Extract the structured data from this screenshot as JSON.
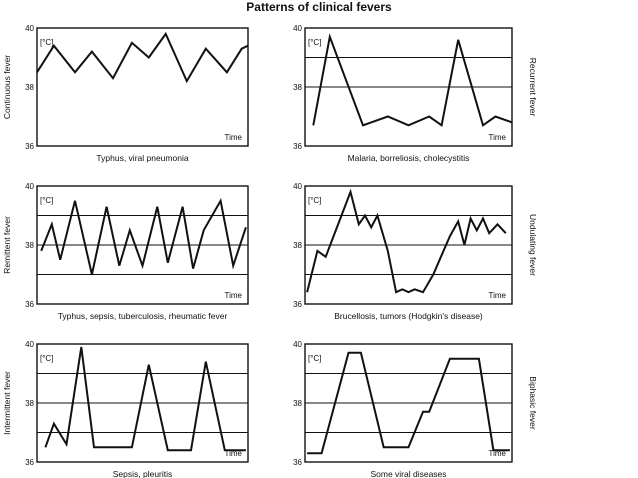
{
  "title": "Patterns of clinical fevers",
  "chart_data": [
    {
      "type": "line",
      "ylabel": "Continuous fever",
      "unit": "[°C]",
      "xlabel": "Time",
      "caption": "Typhus, viral pneumonia",
      "ylim": [
        36,
        40
      ],
      "yticks": [
        36,
        38,
        40
      ],
      "hlines": [],
      "grid": false,
      "label_side": "left",
      "x": [
        0,
        0.08,
        0.18,
        0.26,
        0.36,
        0.45,
        0.53,
        0.61,
        0.71,
        0.8,
        0.9,
        0.97,
        1
      ],
      "values": [
        38.5,
        39.4,
        38.5,
        39.2,
        38.3,
        39.5,
        39.0,
        39.8,
        38.2,
        39.3,
        38.5,
        39.3,
        39.4
      ]
    },
    {
      "type": "line",
      "ylabel": "Recurrent fever",
      "unit": "[°C]",
      "xlabel": "Time",
      "caption": "Malaria, borreliosis, cholecystitis",
      "ylim": [
        36,
        40
      ],
      "yticks": [
        36,
        38,
        40
      ],
      "hlines": [
        39,
        38
      ],
      "grid": false,
      "label_side": "right",
      "x": [
        0.04,
        0.12,
        0.28,
        0.4,
        0.5,
        0.6,
        0.66,
        0.74,
        0.86,
        0.92,
        1
      ],
      "values": [
        36.7,
        39.7,
        36.7,
        37.0,
        36.7,
        37.0,
        36.7,
        39.6,
        36.7,
        37.0,
        36.8
      ]
    },
    {
      "type": "line",
      "ylabel": "Remittent fever",
      "unit": "[°C]",
      "xlabel": "Time",
      "caption": "Typhus, sepsis, tuberculosis, rheumatic fever",
      "ylim": [
        36,
        40
      ],
      "yticks": [
        36,
        38,
        40
      ],
      "hlines": [
        39,
        38,
        37
      ],
      "grid": false,
      "label_side": "left",
      "x": [
        0.02,
        0.07,
        0.11,
        0.18,
        0.26,
        0.33,
        0.39,
        0.44,
        0.5,
        0.57,
        0.62,
        0.69,
        0.74,
        0.79,
        0.87,
        0.93,
        0.99
      ],
      "values": [
        37.8,
        38.7,
        37.5,
        39.5,
        37.0,
        39.3,
        37.3,
        38.5,
        37.3,
        39.3,
        37.4,
        39.3,
        37.2,
        38.5,
        39.5,
        37.3,
        38.6
      ]
    },
    {
      "type": "line",
      "ylabel": "Undulating fever",
      "unit": "[°C]",
      "xlabel": "Time",
      "caption": "Brucellosis, tumors (Hodgkin's disease)",
      "ylim": [
        36,
        40
      ],
      "yticks": [
        36,
        38,
        40
      ],
      "hlines": [
        39,
        38,
        37
      ],
      "grid": false,
      "label_side": "right",
      "x": [
        0.01,
        0.06,
        0.1,
        0.22,
        0.26,
        0.29,
        0.32,
        0.35,
        0.4,
        0.44,
        0.47,
        0.5,
        0.53,
        0.57,
        0.62,
        0.65,
        0.7,
        0.74,
        0.77,
        0.8,
        0.83,
        0.86,
        0.89,
        0.93,
        0.97
      ],
      "values": [
        36.4,
        37.8,
        37.6,
        39.8,
        38.7,
        39.0,
        38.6,
        39.0,
        37.8,
        36.4,
        36.5,
        36.4,
        36.5,
        36.4,
        37.0,
        37.5,
        38.3,
        38.8,
        38.0,
        38.9,
        38.5,
        38.9,
        38.4,
        38.7,
        38.4
      ]
    },
    {
      "type": "line",
      "ylabel": "Intermittent fever",
      "unit": "[°C]",
      "xlabel": "Time",
      "caption": "Sepsis, pleuritis",
      "ylim": [
        36,
        40
      ],
      "yticks": [
        36,
        38,
        40
      ],
      "hlines": [
        39,
        38,
        37
      ],
      "grid": false,
      "label_side": "left",
      "x": [
        0.04,
        0.08,
        0.14,
        0.21,
        0.27,
        0.45,
        0.53,
        0.62,
        0.73,
        0.8,
        0.89,
        0.99
      ],
      "values": [
        36.5,
        37.3,
        36.6,
        39.9,
        36.5,
        36.5,
        39.3,
        36.4,
        36.4,
        39.4,
        36.4,
        36.4
      ]
    },
    {
      "type": "line",
      "ylabel": "Biphasic fever",
      "unit": "[°C]",
      "xlabel": "Time",
      "caption": "Some viral diseases",
      "ylim": [
        36,
        40
      ],
      "yticks": [
        36,
        38,
        40
      ],
      "hlines": [
        39,
        38,
        37
      ],
      "grid": false,
      "label_side": "right",
      "x": [
        0.01,
        0.08,
        0.21,
        0.27,
        0.38,
        0.5,
        0.57,
        0.6,
        0.7,
        0.84,
        0.91,
        0.99
      ],
      "values": [
        36.3,
        36.3,
        39.7,
        39.7,
        36.5,
        36.5,
        37.7,
        37.7,
        39.5,
        39.5,
        36.4,
        36.4
      ]
    }
  ]
}
